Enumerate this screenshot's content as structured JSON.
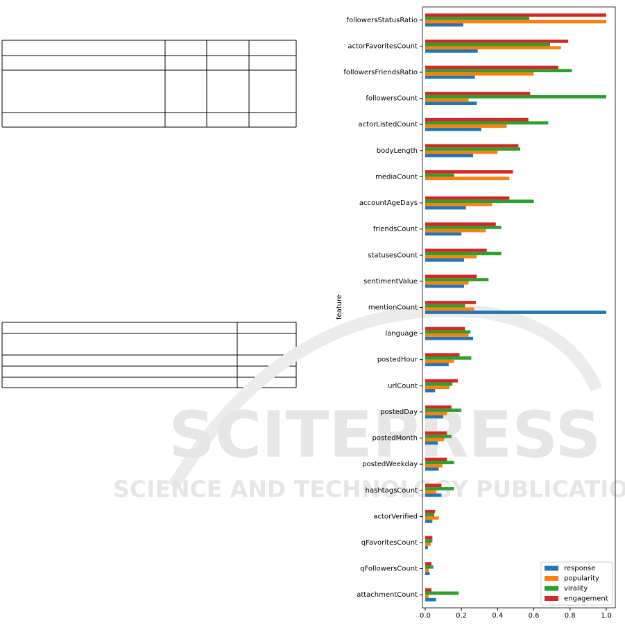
{
  "chart_data": {
    "type": "barh",
    "ylabel": "feature",
    "categories": [
      "followersStatusRatio",
      "actorFavoritesCount",
      "followersFriendsRatio",
      "followersCount",
      "actorListedCount",
      "bodyLength",
      "mediaCount",
      "accountAgeDays",
      "friendsCount",
      "statusesCount",
      "sentimentValue",
      "mentionCount",
      "language",
      "postedHour",
      "urlCount",
      "postedDay",
      "postedMonth",
      "postedWeekday",
      "hashtagsCount",
      "actorVerified",
      "qFavoritesCount",
      "qFollowersCount",
      "attachmentCount"
    ],
    "series": [
      {
        "name": "response",
        "color": "#1f77b4",
        "values": [
          0.21,
          0.29,
          0.275,
          0.285,
          0.31,
          0.265,
          0.0,
          0.225,
          0.2,
          0.215,
          0.215,
          1.0,
          0.265,
          0.13,
          0.055,
          0.1,
          0.07,
          0.075,
          0.09,
          0.04,
          0.015,
          0.025,
          0.06
        ]
      },
      {
        "name": "popularity",
        "color": "#ff7f0e",
        "values": [
          1.0,
          0.75,
          0.6,
          0.24,
          0.45,
          0.4,
          0.465,
          0.37,
          0.335,
          0.285,
          0.24,
          0.27,
          0.24,
          0.16,
          0.135,
          0.12,
          0.105,
          0.095,
          0.06,
          0.075,
          0.03,
          0.02,
          0.02
        ]
      },
      {
        "name": "virality",
        "color": "#2ca02c",
        "values": [
          0.575,
          0.69,
          0.81,
          1.0,
          0.68,
          0.525,
          0.16,
          0.6,
          0.42,
          0.42,
          0.35,
          0.22,
          0.25,
          0.255,
          0.15,
          0.2,
          0.145,
          0.16,
          0.16,
          0.05,
          0.04,
          0.045,
          0.185
        ]
      },
      {
        "name": "engagement",
        "color": "#d62728",
        "values": [
          1.0,
          0.79,
          0.735,
          0.58,
          0.57,
          0.515,
          0.485,
          0.465,
          0.39,
          0.34,
          0.285,
          0.28,
          0.22,
          0.19,
          0.18,
          0.145,
          0.12,
          0.12,
          0.09,
          0.055,
          0.04,
          0.035,
          0.035
        ]
      }
    ],
    "xlim": [
      -0.015,
      1.05
    ],
    "xticks": [
      {
        "value": 0,
        "label": "0.0"
      },
      0.2,
      0.4,
      0.6,
      0.8,
      {
        "value": 1,
        "label": "1.0"
      }
    ],
    "legend": "lower right"
  },
  "watermark": {
    "title": "SCITEPRESS",
    "subtitle": "SCIENCE AND TECHNOLOGY PUBLICATIONS"
  }
}
